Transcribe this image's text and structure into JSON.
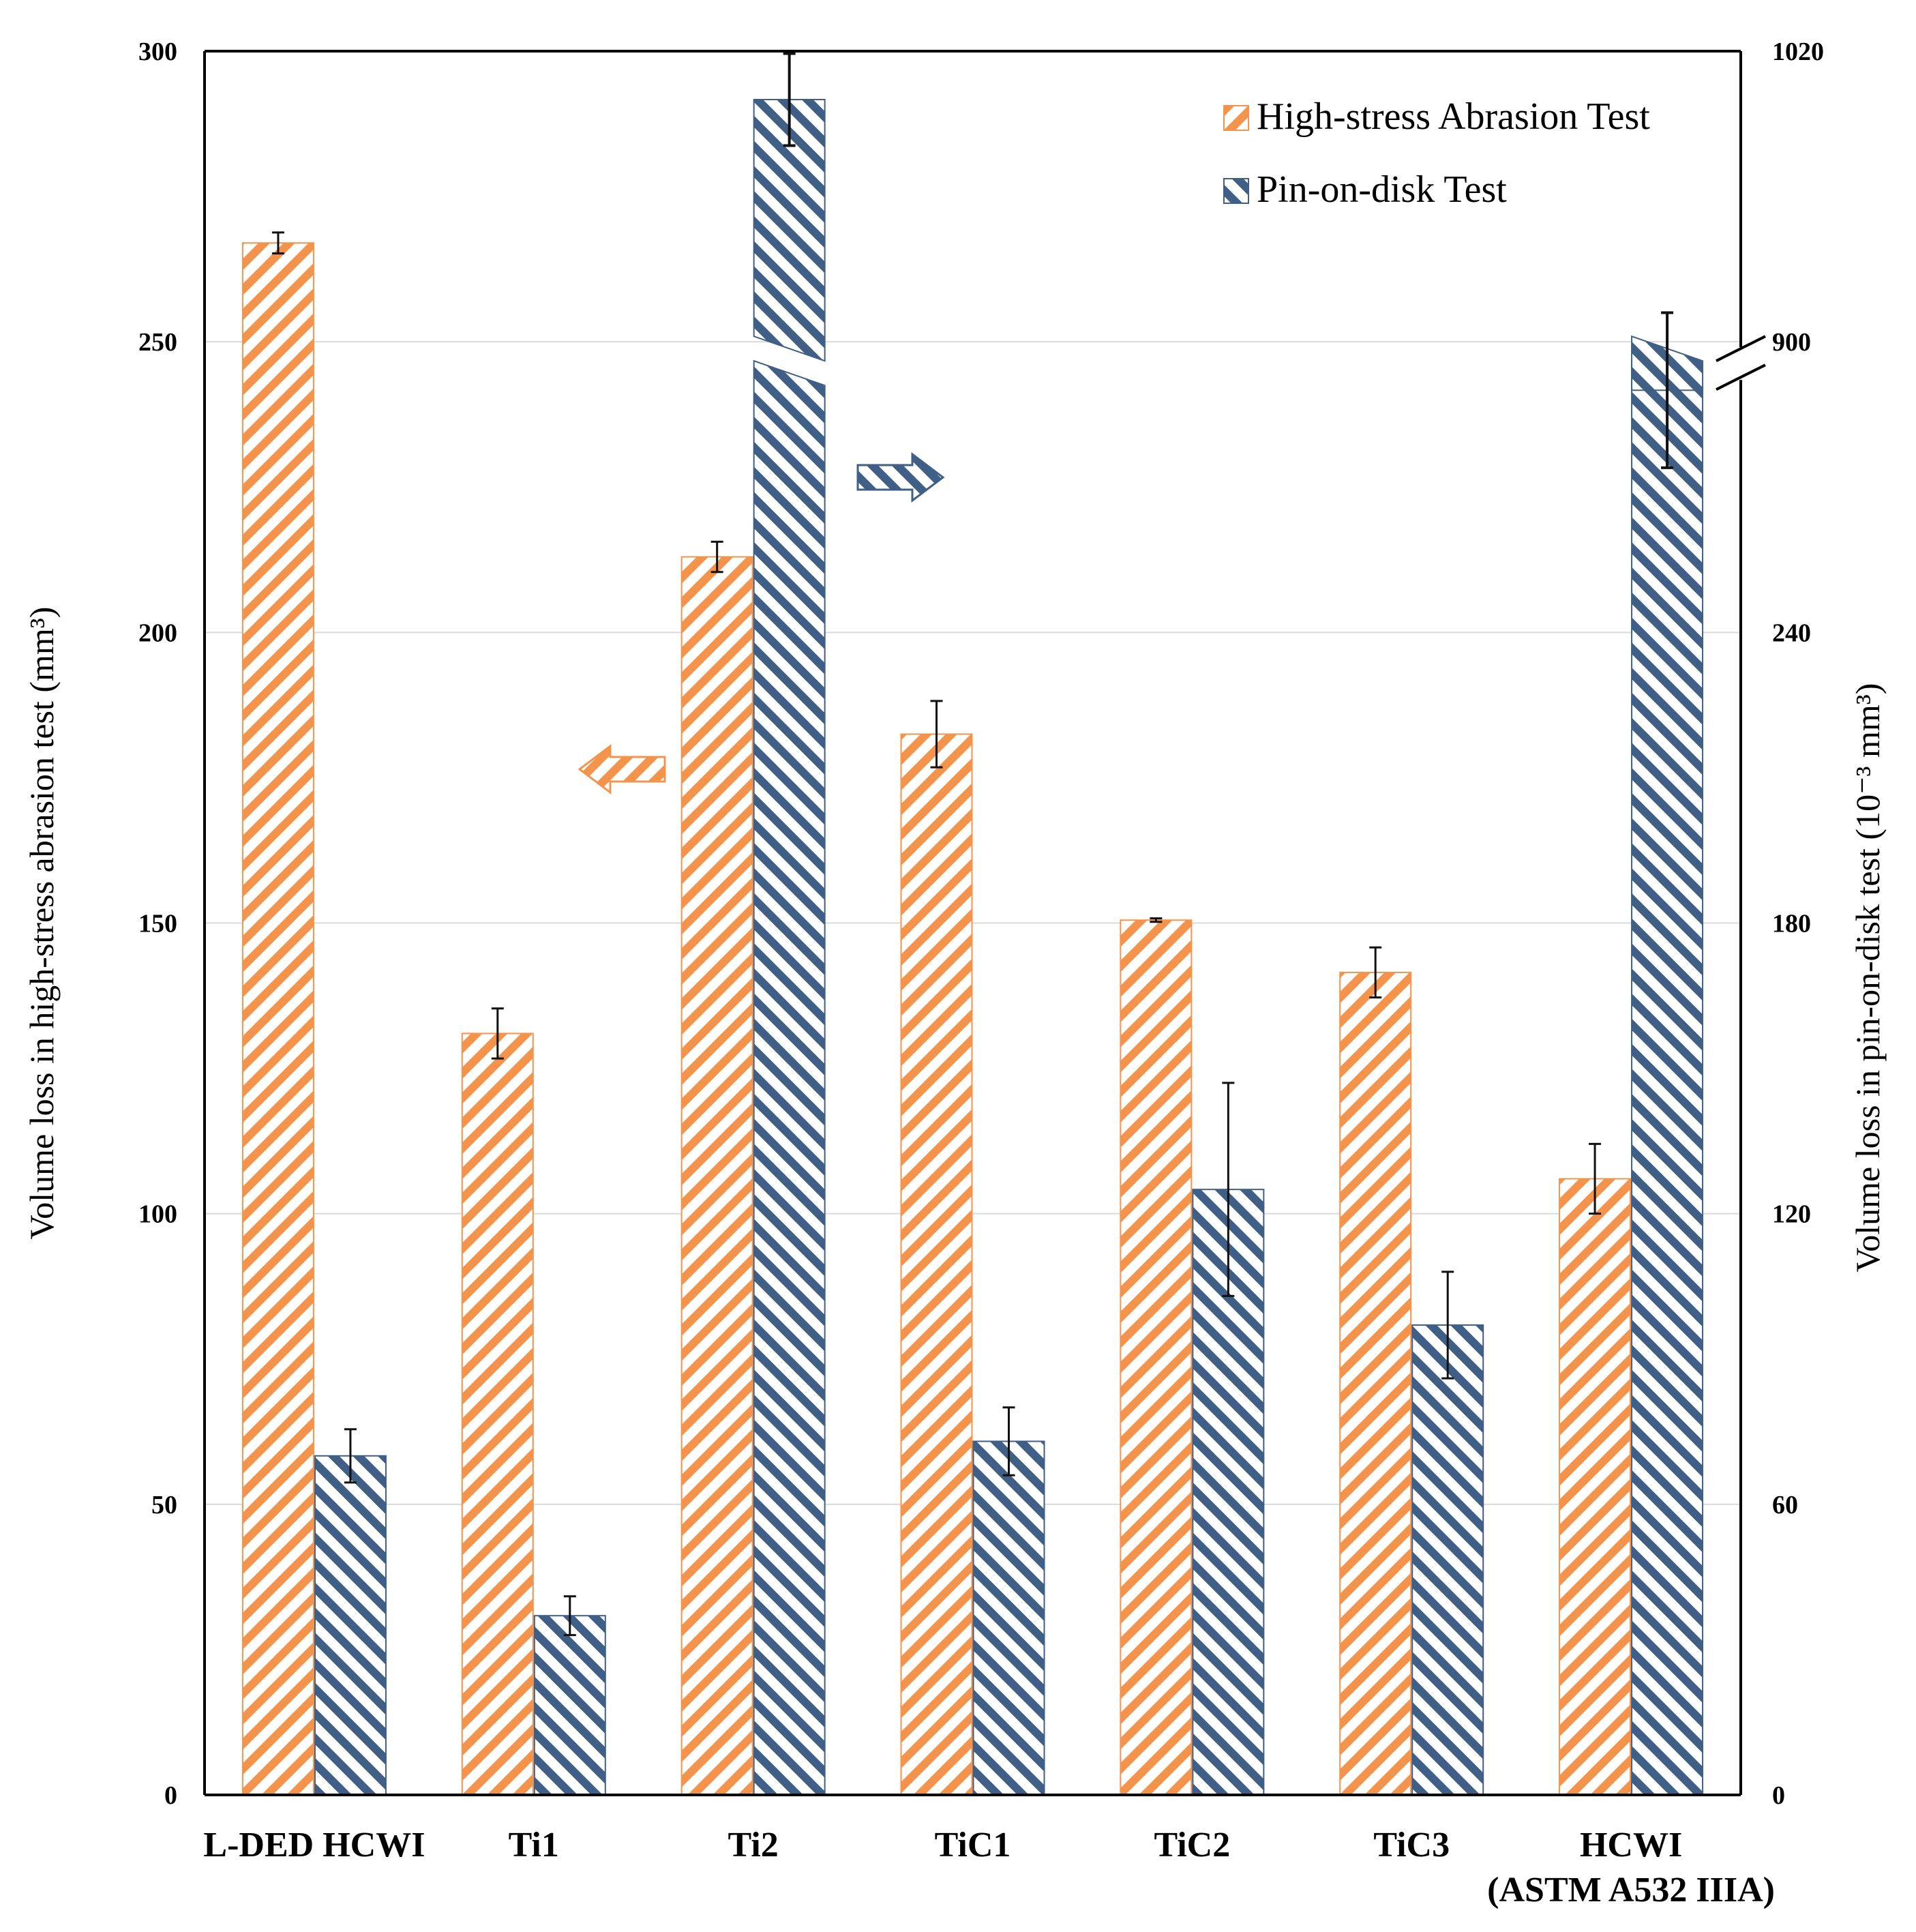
{
  "chart_data": {
    "type": "bar",
    "categories": [
      "L-DED HCWI",
      "Ti1",
      "Ti2",
      "TiC1",
      "TiC2",
      "TiC3",
      "HCWI\n(ASTM A532 IIIA)"
    ],
    "series": [
      {
        "name": "High-stress Abrasion Test",
        "axis": "left",
        "values": [
          267,
          131,
          213,
          182.5,
          150.5,
          141.5,
          106
        ],
        "errors": [
          1.8,
          4.3,
          2.6,
          5.7,
          0.3,
          4.3,
          6
        ],
        "color": "#f4944c"
      },
      {
        "name": "Pin-on-disk Test",
        "axis": "right",
        "values": [
          70,
          37,
          1000,
          73,
          125,
          97,
          880
        ],
        "errors": [
          5.5,
          4,
          19,
          7,
          22,
          11,
          32
        ],
        "color": "#3f5f86"
      }
    ],
    "ylabel_left": "Volume loss in high-stress abrasion test (mm³)",
    "ylabel_right": "Volume loss in pin-on-disk test (10⁻³ mm³)",
    "yticks_left": [
      "0",
      "50",
      "100",
      "150",
      "200",
      "250",
      "300"
    ],
    "yticks_right": [
      "0",
      "60",
      "120",
      "180",
      "240",
      "900",
      "1020"
    ],
    "ylim_left": [
      0,
      300
    ],
    "ylim_right_lower": [
      0,
      300
    ],
    "ylim_right_upper": [
      900,
      1020
    ],
    "right_axis_break": [
      300,
      900
    ],
    "grid": true,
    "legend_position": "top-right"
  }
}
